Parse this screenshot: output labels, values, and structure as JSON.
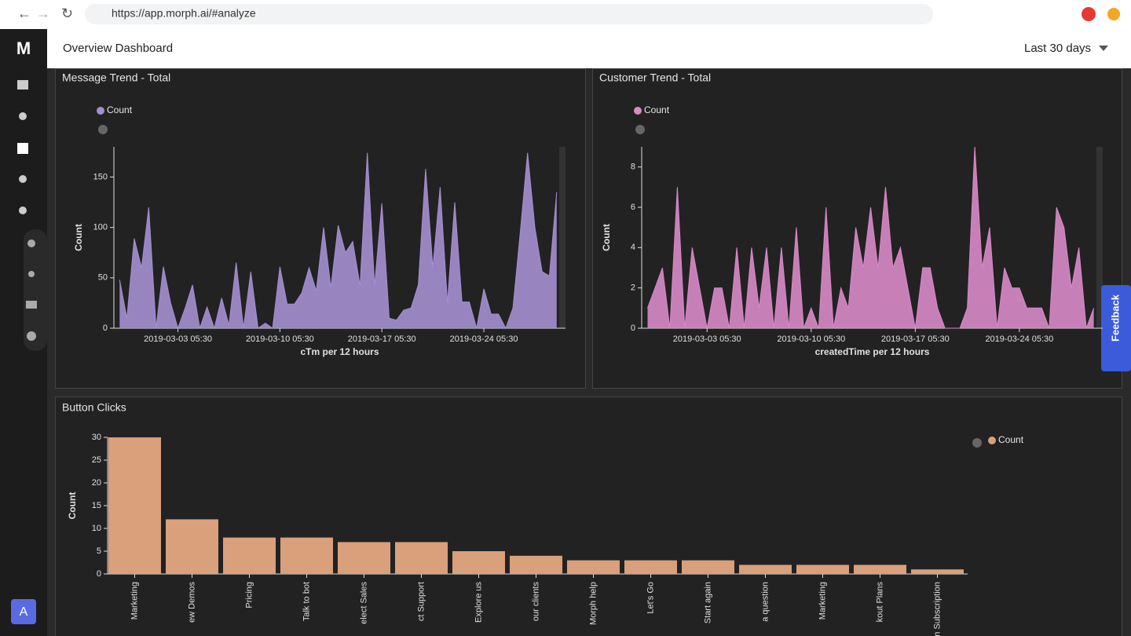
{
  "browser": {
    "url": "https://app.morph.ai/#analyze"
  },
  "header": {
    "title": "Overview Dashboard",
    "range": "Last 30 days"
  },
  "feedback": "Feedback",
  "avatar": "A",
  "chart_data": [
    {
      "type": "area",
      "title": "Message Trend - Total",
      "xlabel": "cTm per 12 hours",
      "ylabel": "Count",
      "x": [
        "2019-02-27 05:30",
        "2019-02-27 17:30",
        "2019-02-28 05:30",
        "2019-02-28 17:30",
        "2019-03-01 05:30",
        "2019-03-01 17:30",
        "2019-03-02 05:30",
        "2019-03-02 17:30",
        "2019-03-03 05:30",
        "2019-03-03 17:30",
        "2019-03-04 05:30",
        "2019-03-04 17:30",
        "2019-03-05 05:30",
        "2019-03-05 17:30",
        "2019-03-06 05:30",
        "2019-03-06 17:30",
        "2019-03-07 05:30",
        "2019-03-07 17:30",
        "2019-03-08 05:30",
        "2019-03-08 17:30",
        "2019-03-09 05:30",
        "2019-03-09 17:30",
        "2019-03-10 05:30",
        "2019-03-10 17:30",
        "2019-03-11 05:30",
        "2019-03-11 17:30",
        "2019-03-12 05:30",
        "2019-03-12 17:30",
        "2019-03-13 05:30",
        "2019-03-13 17:30",
        "2019-03-14 05:30",
        "2019-03-14 17:30",
        "2019-03-15 05:30",
        "2019-03-15 17:30",
        "2019-03-16 05:30",
        "2019-03-16 17:30",
        "2019-03-17 05:30",
        "2019-03-17 17:30",
        "2019-03-18 05:30",
        "2019-03-18 17:30",
        "2019-03-19 05:30",
        "2019-03-19 17:30",
        "2019-03-20 05:30",
        "2019-03-20 17:30",
        "2019-03-21 05:30",
        "2019-03-21 17:30",
        "2019-03-22 05:30",
        "2019-03-22 17:30",
        "2019-03-23 05:30",
        "2019-03-23 17:30",
        "2019-03-24 05:30",
        "2019-03-24 17:30",
        "2019-03-25 05:30",
        "2019-03-25 17:30",
        "2019-03-26 05:30",
        "2019-03-26 17:30",
        "2019-03-27 05:30",
        "2019-03-27 17:30",
        "2019-03-28 05:30",
        "2019-03-28 17:30",
        "2019-03-29 05:30"
      ],
      "xlim": [
        "2019-02-26 20:00",
        "2019-03-29 20:00"
      ],
      "xticks": [
        "2019-03-03 05:30",
        "2019-03-10 05:30",
        "2019-03-17 05:30",
        "2019-03-24 05:30"
      ],
      "series": [
        {
          "name": "Count",
          "color": "#a58fd0",
          "values": [
            48,
            10,
            89,
            60,
            120,
            0,
            61,
            25,
            0,
            20,
            43,
            0,
            21,
            0,
            30,
            3,
            65,
            0,
            56,
            0,
            5,
            0,
            61,
            24,
            24,
            35,
            60,
            37,
            100,
            40,
            102,
            75,
            86,
            42,
            174,
            42,
            124,
            10,
            8,
            18,
            20,
            43,
            158,
            60,
            140,
            25,
            125,
            26,
            26,
            0,
            39,
            14,
            14,
            0,
            20,
            95,
            174,
            100,
            56,
            52,
            135
          ]
        }
      ],
      "ylim": [
        0,
        180
      ],
      "yticks": [
        0,
        50,
        100,
        150
      ]
    },
    {
      "type": "area",
      "title": "Customer Trend - Total",
      "xlabel": "createdTime per 12 hours",
      "ylabel": "Count",
      "x": [
        "2019-02-27 05:30",
        "2019-02-27 17:30",
        "2019-02-28 05:30",
        "2019-02-28 17:30",
        "2019-03-01 05:30",
        "2019-03-01 17:30",
        "2019-03-02 05:30",
        "2019-03-02 17:30",
        "2019-03-03 05:30",
        "2019-03-03 17:30",
        "2019-03-04 05:30",
        "2019-03-04 17:30",
        "2019-03-05 05:30",
        "2019-03-05 17:30",
        "2019-03-06 05:30",
        "2019-03-06 17:30",
        "2019-03-07 05:30",
        "2019-03-07 17:30",
        "2019-03-08 05:30",
        "2019-03-08 17:30",
        "2019-03-09 05:30",
        "2019-03-09 17:30",
        "2019-03-10 05:30",
        "2019-03-10 17:30",
        "2019-03-11 05:30",
        "2019-03-11 17:30",
        "2019-03-12 05:30",
        "2019-03-12 17:30",
        "2019-03-13 05:30",
        "2019-03-13 17:30",
        "2019-03-14 05:30",
        "2019-03-14 17:30",
        "2019-03-15 05:30",
        "2019-03-15 17:30",
        "2019-03-16 05:30",
        "2019-03-16 17:30",
        "2019-03-17 05:30",
        "2019-03-17 17:30",
        "2019-03-18 05:30",
        "2019-03-18 17:30",
        "2019-03-19 05:30",
        "2019-03-19 17:30",
        "2019-03-20 05:30",
        "2019-03-20 17:30",
        "2019-03-21 05:30",
        "2019-03-21 17:30",
        "2019-03-22 05:30",
        "2019-03-22 17:30",
        "2019-03-23 05:30",
        "2019-03-23 17:30",
        "2019-03-24 05:30",
        "2019-03-24 17:30",
        "2019-03-25 05:30",
        "2019-03-25 17:30",
        "2019-03-26 05:30",
        "2019-03-26 17:30",
        "2019-03-27 05:30",
        "2019-03-27 17:30",
        "2019-03-28 05:30",
        "2019-03-28 17:30",
        "2019-03-29 05:30"
      ],
      "xlim": [
        "2019-02-26 20:00",
        "2019-03-29 20:00"
      ],
      "xticks": [
        "2019-03-03 05:30",
        "2019-03-10 05:30",
        "2019-03-17 05:30",
        "2019-03-24 05:30"
      ],
      "series": [
        {
          "name": "Count",
          "color": "#d889c8",
          "values": [
            1,
            2,
            3,
            0,
            7,
            0,
            4,
            2,
            0,
            2,
            2,
            0,
            4,
            0,
            4,
            1,
            4,
            0,
            4,
            0,
            5,
            0,
            1,
            0,
            6,
            0,
            2,
            1,
            5,
            3,
            6,
            3,
            7,
            3,
            4,
            2,
            0,
            3,
            3,
            1,
            0,
            0,
            0,
            1,
            9,
            3,
            5,
            0,
            3,
            2,
            2,
            1,
            1,
            1,
            0,
            6,
            5,
            2,
            4,
            0,
            1
          ]
        }
      ],
      "ylim": [
        0,
        9
      ],
      "yticks": [
        0,
        2,
        4,
        6,
        8
      ]
    },
    {
      "type": "bar",
      "title": "Button Clicks",
      "ylabel": "Count",
      "categories": [
        "Marketing",
        "ew Demos",
        "Pricing",
        "Talk to bot",
        "elect Sales",
        "ct Support",
        "Explore us",
        "our clients",
        "Morph help",
        "Let's Go",
        "Start again",
        "a question",
        "Marketing",
        "kout Plans",
        "n Subscription"
      ],
      "series": [
        {
          "name": "Count",
          "color": "#d9a07b",
          "values": [
            30,
            12,
            8,
            8,
            7,
            7,
            5,
            4,
            3,
            3,
            3,
            2,
            2,
            2,
            1
          ]
        }
      ],
      "ylim": [
        0,
        30
      ],
      "yticks": [
        0,
        5,
        10,
        15,
        20,
        25,
        30
      ]
    }
  ]
}
